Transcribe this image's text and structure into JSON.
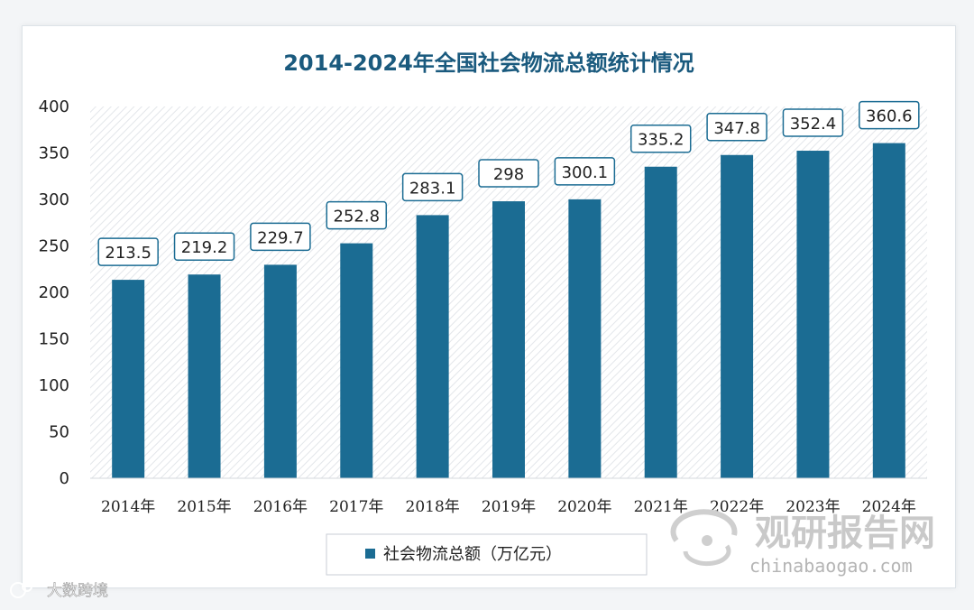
{
  "chart_data": {
    "type": "bar",
    "title": "2014-2024年全国社会物流总额统计情况",
    "categories": [
      "2014年",
      "2015年",
      "2016年",
      "2017年",
      "2018年",
      "2019年",
      "2020年",
      "2021年",
      "2022年",
      "2023年",
      "2024年"
    ],
    "series": [
      {
        "name": "社会物流总额（万亿元）",
        "values": [
          213.5,
          219.2,
          229.7,
          252.8,
          283.1,
          298,
          300.1,
          335.2,
          347.8,
          352.4,
          360.6
        ],
        "labels": [
          "213.5",
          "219.2",
          "229.7",
          "252.8",
          "283.1",
          "298",
          "300.1",
          "335.2",
          "347.8",
          "352.4",
          "360.6"
        ]
      }
    ],
    "ylim": [
      0,
      400
    ],
    "yticks": [
      0,
      50,
      100,
      150,
      200,
      250,
      300,
      350,
      400
    ],
    "grid": false,
    "legend_position": "bottom-center",
    "colors": {
      "bar": "#1b6c93",
      "title": "#1a5a7e",
      "label_border": "#1b6c93"
    }
  },
  "watermarks": {
    "brand_cn": "观研报告网",
    "brand_url": "chinabaogao.com",
    "corner": "大数跨境"
  }
}
